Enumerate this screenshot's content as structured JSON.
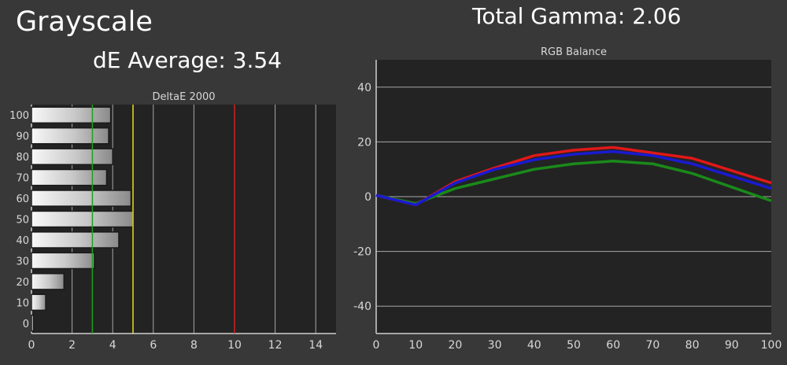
{
  "header": {
    "title": "Grayscale",
    "de_average": "dE Average: 3.54",
    "total_gamma": "Total Gamma: 2.06"
  },
  "colors": {
    "background": "#383838",
    "plot_background": "#232323",
    "grid": "#a8a8a8",
    "red": "#e01818",
    "green": "#1a8a1a",
    "blue": "#1a1ad0",
    "threshold_green": "#1fa01f",
    "threshold_yellow": "#e6e01c",
    "threshold_red": "#d42020"
  },
  "chart_data": [
    {
      "type": "bar",
      "orientation": "horizontal",
      "title": "DeltaE 2000",
      "categories": [
        "0",
        "10",
        "20",
        "30",
        "40",
        "50",
        "60",
        "70",
        "80",
        "90",
        "100"
      ],
      "values": [
        0.1,
        0.7,
        1.6,
        3.1,
        4.3,
        5.0,
        4.9,
        3.7,
        4.0,
        3.8,
        3.9
      ],
      "xlim": [
        0,
        15
      ],
      "xticks": [
        0,
        2,
        4,
        6,
        8,
        10,
        12,
        14
      ],
      "threshold_lines": [
        {
          "value": 3,
          "color": "green"
        },
        {
          "value": 5,
          "color": "yellow"
        },
        {
          "value": 10,
          "color": "red"
        }
      ],
      "grid": true
    },
    {
      "type": "line",
      "title": "RGB Balance",
      "x": [
        0,
        10,
        20,
        30,
        40,
        50,
        60,
        70,
        80,
        90,
        100
      ],
      "series": [
        {
          "color": "red",
          "values": [
            0.5,
            -3,
            5.5,
            10.5,
            15,
            17,
            18,
            16,
            14,
            9.5,
            5
          ]
        },
        {
          "color": "green",
          "values": [
            0.5,
            -2.5,
            3,
            6.5,
            10,
            12,
            13,
            12,
            8.5,
            3.5,
            -1.5
          ]
        },
        {
          "color": "blue",
          "values": [
            0.5,
            -3,
            5,
            10,
            13.5,
            15.5,
            16.5,
            15,
            12,
            7.5,
            3
          ]
        }
      ],
      "xlim": [
        0,
        100
      ],
      "ylim": [
        -50,
        50
      ],
      "xticks": [
        0,
        10,
        20,
        30,
        40,
        50,
        60,
        70,
        80,
        90,
        100
      ],
      "yticks": [
        -40,
        -20,
        0,
        20,
        40
      ],
      "grid": true
    }
  ]
}
